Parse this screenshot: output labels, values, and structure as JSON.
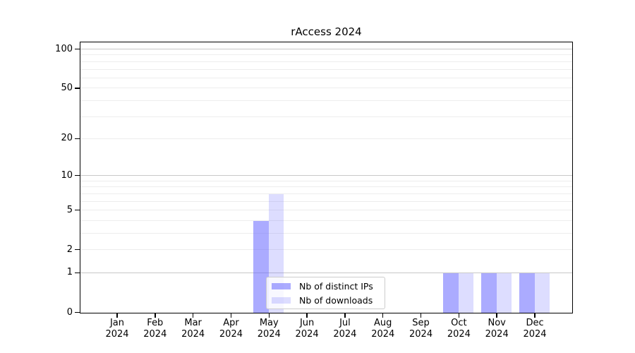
{
  "chart_data": {
    "type": "bar",
    "title": "rAccess 2024",
    "categories": [
      "Jan",
      "Feb",
      "Mar",
      "Apr",
      "May",
      "Jun",
      "Jul",
      "Aug",
      "Sep",
      "Oct",
      "Nov",
      "Dec"
    ],
    "year_label": "2024",
    "series": [
      {
        "name": "Nb of distinct IPs",
        "color": "rgba(102,102,255,0.55)",
        "values": [
          0,
          0,
          0,
          0,
          4,
          0,
          0,
          0,
          0,
          1,
          1,
          1
        ]
      },
      {
        "name": "Nb of downloads",
        "color": "rgba(102,102,255,0.22)",
        "values": [
          0,
          0,
          0,
          0,
          7,
          0,
          0,
          0,
          0,
          1,
          1,
          1
        ]
      }
    ],
    "xlabel": "",
    "ylabel": "",
    "yscale": "log1p",
    "ylim": [
      0,
      112
    ],
    "yticks": [
      0,
      1,
      2,
      5,
      10,
      20,
      50,
      100
    ],
    "major_gridlines": [
      1,
      10,
      100
    ],
    "minor_gridlines": [
      2,
      3,
      4,
      5,
      6,
      7,
      8,
      9,
      20,
      30,
      40,
      50,
      60,
      70,
      80,
      90
    ],
    "grid": true,
    "legend_position": "lower center"
  },
  "colors": {
    "background": "#ffffff",
    "axis": "#000000",
    "major_grid": "#c8c8c8",
    "minor_grid": "#ededed",
    "legend_border": "#cccccc",
    "legend_background": "rgba(255,255,255,0.8)",
    "text": "#000000"
  }
}
